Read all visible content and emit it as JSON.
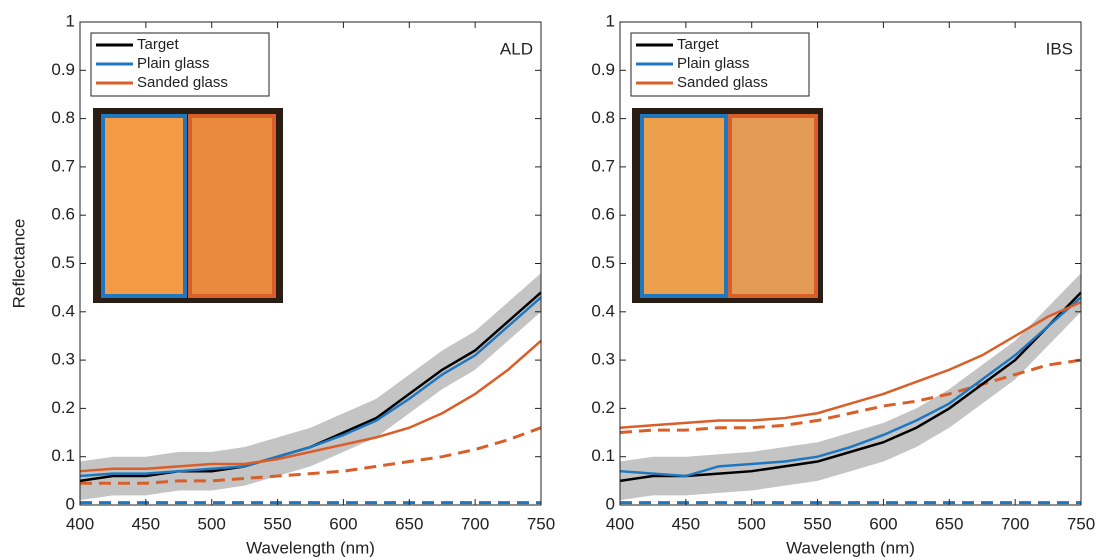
{
  "chart_data": [
    {
      "type": "line",
      "annotation": "ALD",
      "xlabel": "Wavelength (nm)",
      "ylabel": "Reflectance",
      "x": [
        400,
        425,
        450,
        475,
        500,
        525,
        550,
        575,
        600,
        625,
        650,
        675,
        700,
        725,
        750
      ],
      "xlim": [
        400,
        750
      ],
      "xticks": [
        400,
        450,
        500,
        550,
        600,
        650,
        700,
        750
      ],
      "ylim": [
        0,
        1
      ],
      "yticks": [
        0,
        0.1,
        0.2,
        0.3,
        0.4,
        0.5,
        0.6,
        0.7,
        0.8,
        0.9,
        1
      ],
      "legend": "upper left",
      "band": {
        "color": "#c4c4c4",
        "lower": [
          0.01,
          0.02,
          0.02,
          0.03,
          0.03,
          0.04,
          0.06,
          0.08,
          0.11,
          0.14,
          0.19,
          0.24,
          0.28,
          0.34,
          0.4
        ],
        "upper": [
          0.09,
          0.1,
          0.1,
          0.11,
          0.11,
          0.12,
          0.14,
          0.16,
          0.19,
          0.22,
          0.27,
          0.32,
          0.36,
          0.42,
          0.48
        ]
      },
      "series": [
        {
          "name": "Target",
          "color": "#000000",
          "values": [
            0.05,
            0.06,
            0.06,
            0.07,
            0.07,
            0.08,
            0.1,
            0.12,
            0.15,
            0.18,
            0.23,
            0.28,
            0.32,
            0.38,
            0.44
          ]
        },
        {
          "name": "Plain glass",
          "color": "#1f77c0",
          "values": [
            0.06,
            0.065,
            0.065,
            0.07,
            0.075,
            0.08,
            0.1,
            0.12,
            0.145,
            0.175,
            0.22,
            0.27,
            0.31,
            0.37,
            0.43
          ]
        },
        {
          "name": "Sanded glass",
          "color": "#d95f2a",
          "values": [
            0.07,
            0.075,
            0.075,
            0.08,
            0.085,
            0.085,
            0.095,
            0.11,
            0.125,
            0.14,
            0.16,
            0.19,
            0.23,
            0.28,
            0.34
          ]
        },
        {
          "color": "#d95f2a",
          "dash": true,
          "values": [
            0.045,
            0.045,
            0.045,
            0.05,
            0.05,
            0.055,
            0.06,
            0.065,
            0.07,
            0.08,
            0.09,
            0.1,
            0.115,
            0.135,
            0.16
          ]
        },
        {
          "color": "#1f77c0",
          "dash": true,
          "values": [
            0.005,
            0.005,
            0.005,
            0.005,
            0.005,
            0.005,
            0.005,
            0.005,
            0.005,
            0.005,
            0.005,
            0.005,
            0.005,
            0.005,
            0.005
          ]
        }
      ]
    },
    {
      "type": "line",
      "annotation": "IBS",
      "xlabel": "Wavelength (nm)",
      "x": [
        400,
        425,
        450,
        475,
        500,
        525,
        550,
        575,
        600,
        625,
        650,
        675,
        700,
        725,
        750
      ],
      "xlim": [
        400,
        750
      ],
      "xticks": [
        400,
        450,
        500,
        550,
        600,
        650,
        700,
        750
      ],
      "ylim": [
        0,
        1
      ],
      "yticks": [
        0,
        0.1,
        0.2,
        0.3,
        0.4,
        0.5,
        0.6,
        0.7,
        0.8,
        0.9,
        1
      ],
      "legend": "upper left",
      "band": {
        "color": "#c4c4c4",
        "lower": [
          0.01,
          0.02,
          0.02,
          0.025,
          0.03,
          0.04,
          0.05,
          0.07,
          0.09,
          0.12,
          0.16,
          0.21,
          0.26,
          0.33,
          0.4
        ],
        "upper": [
          0.09,
          0.1,
          0.1,
          0.105,
          0.11,
          0.12,
          0.13,
          0.15,
          0.17,
          0.2,
          0.24,
          0.29,
          0.34,
          0.41,
          0.48
        ]
      },
      "series": [
        {
          "name": "Target",
          "color": "#000000",
          "values": [
            0.05,
            0.06,
            0.06,
            0.065,
            0.07,
            0.08,
            0.09,
            0.11,
            0.13,
            0.16,
            0.2,
            0.25,
            0.3,
            0.37,
            0.44
          ]
        },
        {
          "name": "Plain glass",
          "color": "#1f77c0",
          "values": [
            0.07,
            0.065,
            0.06,
            0.08,
            0.085,
            0.09,
            0.1,
            0.12,
            0.145,
            0.175,
            0.21,
            0.26,
            0.31,
            0.37,
            0.43
          ]
        },
        {
          "name": "Sanded glass",
          "color": "#d95f2a",
          "values": [
            0.16,
            0.165,
            0.17,
            0.175,
            0.175,
            0.18,
            0.19,
            0.21,
            0.23,
            0.255,
            0.28,
            0.31,
            0.35,
            0.39,
            0.42
          ]
        },
        {
          "color": "#d95f2a",
          "dash": true,
          "values": [
            0.15,
            0.155,
            0.155,
            0.16,
            0.16,
            0.165,
            0.175,
            0.19,
            0.205,
            0.215,
            0.23,
            0.25,
            0.27,
            0.29,
            0.3
          ]
        },
        {
          "color": "#1f77c0",
          "dash": true,
          "values": [
            0.005,
            0.005,
            0.005,
            0.005,
            0.005,
            0.005,
            0.005,
            0.005,
            0.005,
            0.005,
            0.005,
            0.005,
            0.005,
            0.005,
            0.005
          ]
        }
      ]
    }
  ]
}
